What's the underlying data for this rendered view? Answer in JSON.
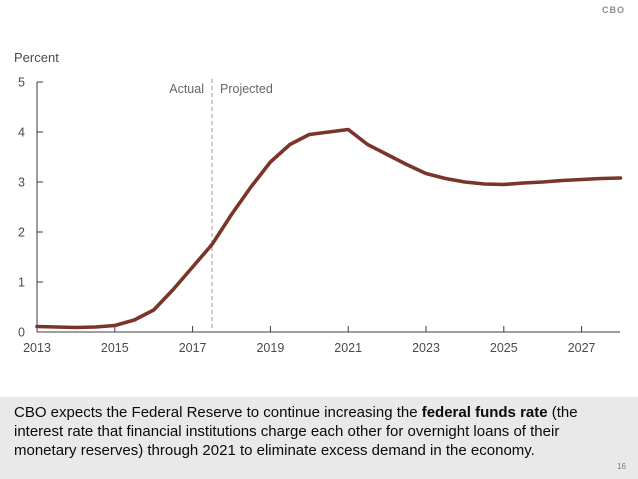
{
  "brand": {
    "logo_text": "CBO",
    "page_number": "16"
  },
  "chart": {
    "ylabel": "Percent",
    "actual_label": "Actual",
    "projected_label": "Projected"
  },
  "chart_data": {
    "type": "line",
    "title": "",
    "xlabel": "",
    "ylabel": "Percent",
    "xlim": [
      2013,
      2028
    ],
    "ylim": [
      0,
      5
    ],
    "xticks": [
      2013,
      2015,
      2017,
      2019,
      2021,
      2023,
      2025,
      2027
    ],
    "yticks": [
      0,
      1,
      2,
      3,
      4,
      5
    ],
    "grid": false,
    "legend": "none",
    "divider_year": 2017.5,
    "annotations": [
      "Actual",
      "Projected"
    ],
    "series": [
      {
        "name": "federal funds rate",
        "color": "#7a3428",
        "x": [
          2013,
          2013.5,
          2014,
          2014.5,
          2015,
          2015.5,
          2016,
          2016.5,
          2017,
          2017.5,
          2018,
          2018.5,
          2019,
          2019.5,
          2020,
          2020.5,
          2021,
          2021.5,
          2022,
          2022.5,
          2023,
          2023.5,
          2024,
          2024.5,
          2025,
          2025.5,
          2026,
          2026.5,
          2027,
          2027.5,
          2028
        ],
        "y": [
          0.11,
          0.1,
          0.09,
          0.1,
          0.13,
          0.24,
          0.44,
          0.85,
          1.3,
          1.75,
          2.35,
          2.9,
          3.4,
          3.75,
          3.95,
          4.0,
          4.05,
          3.75,
          3.55,
          3.35,
          3.17,
          3.07,
          3.0,
          2.96,
          2.95,
          2.98,
          3.0,
          3.03,
          3.05,
          3.07,
          3.08
        ]
      }
    ]
  },
  "caption": {
    "pre_bold": "CBO expects the Federal Reserve to continue increasing the ",
    "bold": "federal funds rate",
    "post_bold": " (the interest rate that financial institutions charge each other for overnight loans of their monetary reserves) through 2021 to eliminate excess demand in the economy."
  }
}
